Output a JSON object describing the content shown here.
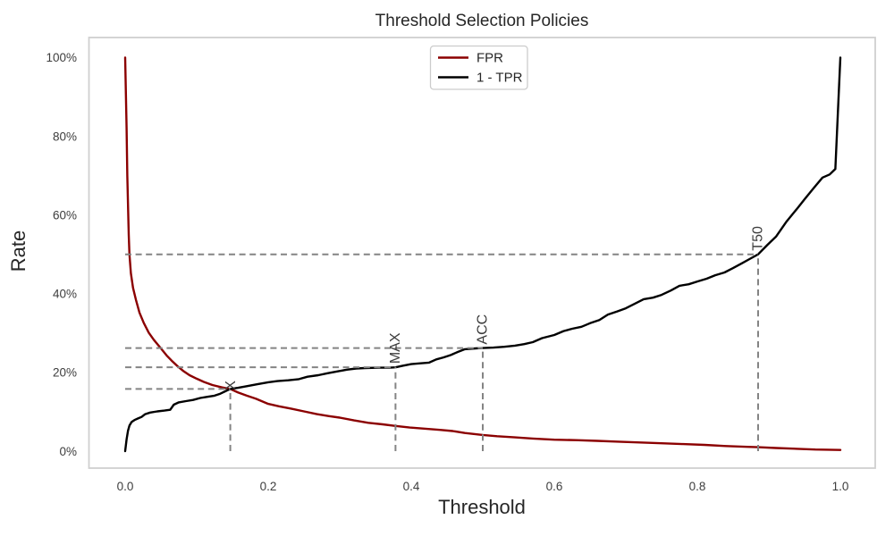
{
  "figure": {
    "background": "#ffffff",
    "axes_border_color": "#d0d0d0",
    "text_color": "#262626",
    "tick_color": "#3d3d3d"
  },
  "chart_data": {
    "type": "line",
    "title": "Threshold Selection Policies",
    "xlabel": "Threshold",
    "ylabel": "Rate",
    "grid": false,
    "xlim": [
      -0.05,
      1.05
    ],
    "ylim": [
      -0.043,
      1.051
    ],
    "x_ticks": [
      {
        "value": 0.0,
        "label": "0.0"
      },
      {
        "value": 0.2,
        "label": "0.2"
      },
      {
        "value": 0.4,
        "label": "0.4"
      },
      {
        "value": 0.6,
        "label": "0.6"
      },
      {
        "value": 0.8,
        "label": "0.8"
      },
      {
        "value": 1.0,
        "label": "1.0"
      }
    ],
    "y_ticks": [
      {
        "value": 0.0,
        "label": "0%"
      },
      {
        "value": 0.2,
        "label": "20%"
      },
      {
        "value": 0.4,
        "label": "40%"
      },
      {
        "value": 0.6,
        "label": "60%"
      },
      {
        "value": 0.8,
        "label": "80%"
      },
      {
        "value": 1.0,
        "label": "100%"
      }
    ],
    "legend": {
      "position": "upper center",
      "border_color": "#cccccc",
      "entries": [
        {
          "label": "FPR",
          "color": "#8b0000"
        },
        {
          "label": "1 - TPR",
          "color": "#000000"
        }
      ]
    },
    "series": [
      {
        "name": "FPR",
        "color": "#8b0000",
        "line_width": 2.4,
        "points": [
          [
            0.0,
            1.0
          ],
          [
            0.002,
            0.82
          ],
          [
            0.003,
            0.7
          ],
          [
            0.005,
            0.55
          ],
          [
            0.006,
            0.5
          ],
          [
            0.008,
            0.452
          ],
          [
            0.011,
            0.415
          ],
          [
            0.015,
            0.385
          ],
          [
            0.02,
            0.352
          ],
          [
            0.026,
            0.326
          ],
          [
            0.033,
            0.301
          ],
          [
            0.04,
            0.283
          ],
          [
            0.05,
            0.261
          ],
          [
            0.058,
            0.243
          ],
          [
            0.065,
            0.23
          ],
          [
            0.073,
            0.216
          ],
          [
            0.081,
            0.204
          ],
          [
            0.09,
            0.193
          ],
          [
            0.1,
            0.184
          ],
          [
            0.11,
            0.176
          ],
          [
            0.122,
            0.168
          ],
          [
            0.135,
            0.162
          ],
          [
            0.147,
            0.158
          ],
          [
            0.158,
            0.149
          ],
          [
            0.17,
            0.141
          ],
          [
            0.183,
            0.133
          ],
          [
            0.2,
            0.12
          ],
          [
            0.215,
            0.114
          ],
          [
            0.232,
            0.108
          ],
          [
            0.25,
            0.101
          ],
          [
            0.268,
            0.094
          ],
          [
            0.285,
            0.089
          ],
          [
            0.3,
            0.085
          ],
          [
            0.32,
            0.078
          ],
          [
            0.34,
            0.072
          ],
          [
            0.36,
            0.068
          ],
          [
            0.378,
            0.064
          ],
          [
            0.398,
            0.06
          ],
          [
            0.42,
            0.057
          ],
          [
            0.44,
            0.054
          ],
          [
            0.458,
            0.051
          ],
          [
            0.475,
            0.046
          ],
          [
            0.5,
            0.041
          ],
          [
            0.52,
            0.038
          ],
          [
            0.545,
            0.035
          ],
          [
            0.57,
            0.032
          ],
          [
            0.6,
            0.029
          ],
          [
            0.63,
            0.028
          ],
          [
            0.66,
            0.026
          ],
          [
            0.69,
            0.024
          ],
          [
            0.72,
            0.022
          ],
          [
            0.75,
            0.02
          ],
          [
            0.78,
            0.018
          ],
          [
            0.81,
            0.016
          ],
          [
            0.84,
            0.013
          ],
          [
            0.87,
            0.011
          ],
          [
            0.885,
            0.01
          ],
          [
            0.91,
            0.008
          ],
          [
            0.94,
            0.006
          ],
          [
            0.965,
            0.004
          ],
          [
            1.0,
            0.003
          ]
        ]
      },
      {
        "name": "1 - TPR",
        "color": "#000000",
        "line_width": 2.4,
        "points": [
          [
            0.0,
            0.0
          ],
          [
            0.002,
            0.03
          ],
          [
            0.004,
            0.052
          ],
          [
            0.006,
            0.065
          ],
          [
            0.009,
            0.074
          ],
          [
            0.013,
            0.079
          ],
          [
            0.018,
            0.083
          ],
          [
            0.023,
            0.087
          ],
          [
            0.028,
            0.094
          ],
          [
            0.035,
            0.098
          ],
          [
            0.045,
            0.101
          ],
          [
            0.055,
            0.103
          ],
          [
            0.063,
            0.105
          ],
          [
            0.068,
            0.118
          ],
          [
            0.075,
            0.124
          ],
          [
            0.085,
            0.127
          ],
          [
            0.095,
            0.13
          ],
          [
            0.105,
            0.135
          ],
          [
            0.115,
            0.138
          ],
          [
            0.125,
            0.141
          ],
          [
            0.133,
            0.146
          ],
          [
            0.14,
            0.152
          ],
          [
            0.147,
            0.158
          ],
          [
            0.158,
            0.161
          ],
          [
            0.17,
            0.165
          ],
          [
            0.185,
            0.17
          ],
          [
            0.2,
            0.175
          ],
          [
            0.213,
            0.178
          ],
          [
            0.228,
            0.18
          ],
          [
            0.243,
            0.183
          ],
          [
            0.255,
            0.189
          ],
          [
            0.27,
            0.193
          ],
          [
            0.283,
            0.198
          ],
          [
            0.298,
            0.203
          ],
          [
            0.31,
            0.207
          ],
          [
            0.323,
            0.21
          ],
          [
            0.335,
            0.211
          ],
          [
            0.355,
            0.212
          ],
          [
            0.37,
            0.212
          ],
          [
            0.378,
            0.213
          ],
          [
            0.388,
            0.217
          ],
          [
            0.4,
            0.221
          ],
          [
            0.413,
            0.223
          ],
          [
            0.425,
            0.225
          ],
          [
            0.435,
            0.233
          ],
          [
            0.445,
            0.238
          ],
          [
            0.455,
            0.244
          ],
          [
            0.465,
            0.252
          ],
          [
            0.475,
            0.259
          ],
          [
            0.49,
            0.261
          ],
          [
            0.5,
            0.262
          ],
          [
            0.515,
            0.263
          ],
          [
            0.53,
            0.265
          ],
          [
            0.545,
            0.268
          ],
          [
            0.558,
            0.272
          ],
          [
            0.57,
            0.277
          ],
          [
            0.583,
            0.287
          ],
          [
            0.6,
            0.295
          ],
          [
            0.613,
            0.305
          ],
          [
            0.625,
            0.311
          ],
          [
            0.638,
            0.316
          ],
          [
            0.65,
            0.325
          ],
          [
            0.663,
            0.333
          ],
          [
            0.675,
            0.347
          ],
          [
            0.688,
            0.355
          ],
          [
            0.7,
            0.363
          ],
          [
            0.713,
            0.375
          ],
          [
            0.725,
            0.386
          ],
          [
            0.738,
            0.39
          ],
          [
            0.75,
            0.397
          ],
          [
            0.763,
            0.408
          ],
          [
            0.775,
            0.42
          ],
          [
            0.788,
            0.424
          ],
          [
            0.8,
            0.431
          ],
          [
            0.813,
            0.438
          ],
          [
            0.825,
            0.447
          ],
          [
            0.838,
            0.454
          ],
          [
            0.85,
            0.465
          ],
          [
            0.863,
            0.478
          ],
          [
            0.873,
            0.488
          ],
          [
            0.885,
            0.5
          ],
          [
            0.898,
            0.524
          ],
          [
            0.91,
            0.545
          ],
          [
            0.925,
            0.584
          ],
          [
            0.94,
            0.617
          ],
          [
            0.95,
            0.64
          ],
          [
            0.963,
            0.669
          ],
          [
            0.975,
            0.695
          ],
          [
            0.985,
            0.703
          ],
          [
            0.993,
            0.717
          ],
          [
            1.0,
            1.0
          ]
        ]
      }
    ],
    "annotations": {
      "guide_color": "#848484",
      "guide_dash": "7,4.6",
      "policies": [
        {
          "label": "X",
          "threshold": 0.147,
          "rate": 0.158
        },
        {
          "label": "MAX",
          "threshold": 0.378,
          "rate": 0.213
        },
        {
          "label": "ACC",
          "threshold": 0.5,
          "rate": 0.262
        },
        {
          "label": "T50",
          "threshold": 0.885,
          "rate": 0.5
        }
      ]
    }
  }
}
